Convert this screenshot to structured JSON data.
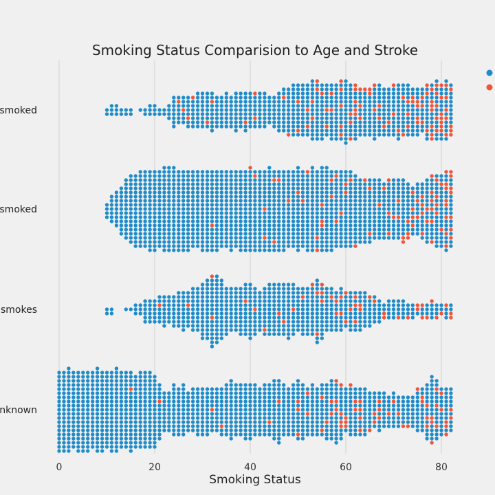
{
  "chart_data": {
    "type": "scatter",
    "subtype": "swarm",
    "title": "Smoking Status Comparision to Age and Stroke",
    "xlabel": "Smoking Status",
    "ylabel": "",
    "xlim": [
      -2,
      82
    ],
    "xticks": [
      "0",
      "20",
      "40",
      "60",
      "80"
    ],
    "categories": [
      "formerly smoked",
      "never smoked",
      "smokes",
      "Unknown"
    ],
    "category_labels_visible": [
      "/ smoked",
      "/ smoked",
      "smokes",
      "Unknown"
    ],
    "grid": "vertical",
    "legend": "top-right (clipped, markers only)",
    "colors": {
      "no_stroke": "#1f8bc9",
      "stroke": "#f0553a",
      "background": "#f0f0f0",
      "grid": "#cfcfcf"
    },
    "series": [
      {
        "color": "#1f8bc9",
        "meaning": "stroke = 0"
      },
      {
        "color": "#f0553a",
        "meaning": "stroke = 1"
      }
    ],
    "age_profiles": {
      "formerly smoked": {
        "range": [
          10,
          82
        ],
        "counts": [
          [
            10,
            2
          ],
          [
            12,
            2
          ],
          [
            14,
            2
          ],
          [
            16,
            1
          ],
          [
            18,
            2
          ],
          [
            20,
            2
          ],
          [
            22,
            2
          ],
          [
            24,
            7
          ],
          [
            26,
            7
          ],
          [
            28,
            8
          ],
          [
            30,
            9
          ],
          [
            32,
            9
          ],
          [
            34,
            8
          ],
          [
            36,
            9
          ],
          [
            38,
            10
          ],
          [
            40,
            9
          ],
          [
            42,
            9
          ],
          [
            44,
            8
          ],
          [
            46,
            10
          ],
          [
            48,
            12
          ],
          [
            50,
            13
          ],
          [
            52,
            13
          ],
          [
            54,
            16
          ],
          [
            56,
            14
          ],
          [
            58,
            14
          ],
          [
            60,
            15
          ],
          [
            62,
            13
          ],
          [
            64,
            12
          ],
          [
            66,
            13
          ],
          [
            68,
            12
          ],
          [
            70,
            14
          ],
          [
            72,
            14
          ],
          [
            74,
            12
          ],
          [
            76,
            11
          ],
          [
            78,
            15
          ],
          [
            80,
            14
          ],
          [
            82,
            14
          ]
        ],
        "stroke": [
          [
            36,
            0.04
          ],
          [
            50,
            0.06
          ],
          [
            56,
            0.08
          ],
          [
            60,
            0.18
          ],
          [
            64,
            0.14
          ],
          [
            68,
            0.2
          ],
          [
            72,
            0.22
          ],
          [
            76,
            0.28
          ],
          [
            80,
            0.32
          ]
        ]
      },
      "never smoked": {
        "range": [
          10,
          82
        ],
        "counts": [
          [
            10,
            5
          ],
          [
            12,
            10
          ],
          [
            14,
            15
          ],
          [
            16,
            18
          ],
          [
            18,
            20
          ],
          [
            20,
            20
          ],
          [
            30,
            20
          ],
          [
            40,
            20
          ],
          [
            50,
            20
          ],
          [
            58,
            20
          ],
          [
            60,
            19
          ],
          [
            62,
            18
          ],
          [
            64,
            16
          ],
          [
            66,
            16
          ],
          [
            68,
            15
          ],
          [
            70,
            16
          ],
          [
            72,
            15
          ],
          [
            74,
            13
          ],
          [
            76,
            14
          ],
          [
            78,
            17
          ],
          [
            80,
            19
          ],
          [
            82,
            19
          ]
        ],
        "stroke": [
          [
            30,
            0.0
          ],
          [
            44,
            0.03
          ],
          [
            54,
            0.04
          ],
          [
            62,
            0.06
          ],
          [
            68,
            0.1
          ],
          [
            72,
            0.15
          ],
          [
            76,
            0.2
          ],
          [
            80,
            0.28
          ]
        ]
      },
      "smokes": {
        "range": [
          10,
          82
        ],
        "counts": [
          [
            10,
            1
          ],
          [
            12,
            1
          ],
          [
            14,
            1
          ],
          [
            16,
            3
          ],
          [
            18,
            5
          ],
          [
            20,
            6
          ],
          [
            22,
            8
          ],
          [
            24,
            8
          ],
          [
            26,
            10
          ],
          [
            28,
            10
          ],
          [
            30,
            13
          ],
          [
            32,
            18
          ],
          [
            34,
            15
          ],
          [
            36,
            11
          ],
          [
            38,
            12
          ],
          [
            40,
            13
          ],
          [
            42,
            11
          ],
          [
            44,
            14
          ],
          [
            46,
            12
          ],
          [
            48,
            13
          ],
          [
            50,
            11
          ],
          [
            52,
            12
          ],
          [
            54,
            16
          ],
          [
            56,
            12
          ],
          [
            58,
            11
          ],
          [
            60,
            10
          ],
          [
            62,
            10
          ],
          [
            64,
            8
          ],
          [
            66,
            7
          ],
          [
            68,
            5
          ],
          [
            70,
            5
          ],
          [
            72,
            5
          ],
          [
            74,
            4
          ],
          [
            76,
            4
          ],
          [
            78,
            5
          ],
          [
            80,
            4
          ],
          [
            82,
            4
          ]
        ],
        "stroke": [
          [
            30,
            0.02
          ],
          [
            40,
            0.05
          ],
          [
            52,
            0.08
          ],
          [
            58,
            0.12
          ],
          [
            64,
            0.16
          ],
          [
            72,
            0.18
          ],
          [
            78,
            0.22
          ]
        ]
      },
      "Unknown": {
        "range": [
          0,
          82
        ],
        "counts": [
          [
            0,
            20
          ],
          [
            14,
            20
          ],
          [
            16,
            19
          ],
          [
            18,
            20
          ],
          [
            20,
            19
          ],
          [
            22,
            10
          ],
          [
            24,
            12
          ],
          [
            26,
            12
          ],
          [
            28,
            10
          ],
          [
            30,
            12
          ],
          [
            32,
            11
          ],
          [
            34,
            11
          ],
          [
            36,
            15
          ],
          [
            38,
            12
          ],
          [
            40,
            14
          ],
          [
            42,
            12
          ],
          [
            44,
            13
          ],
          [
            46,
            16
          ],
          [
            48,
            11
          ],
          [
            50,
            14
          ],
          [
            52,
            12
          ],
          [
            54,
            13
          ],
          [
            56,
            14
          ],
          [
            58,
            16
          ],
          [
            60,
            12
          ],
          [
            62,
            13
          ],
          [
            64,
            11
          ],
          [
            66,
            10
          ],
          [
            68,
            9
          ],
          [
            70,
            8
          ],
          [
            72,
            8
          ],
          [
            74,
            9
          ],
          [
            76,
            11
          ],
          [
            78,
            17
          ],
          [
            80,
            13
          ],
          [
            82,
            10
          ]
        ],
        "stroke": [
          [
            12,
            0.0
          ],
          [
            14,
            0.01
          ],
          [
            40,
            0.02
          ],
          [
            52,
            0.06
          ],
          [
            58,
            0.14
          ],
          [
            64,
            0.12
          ],
          [
            72,
            0.12
          ],
          [
            78,
            0.18
          ]
        ]
      }
    }
  }
}
